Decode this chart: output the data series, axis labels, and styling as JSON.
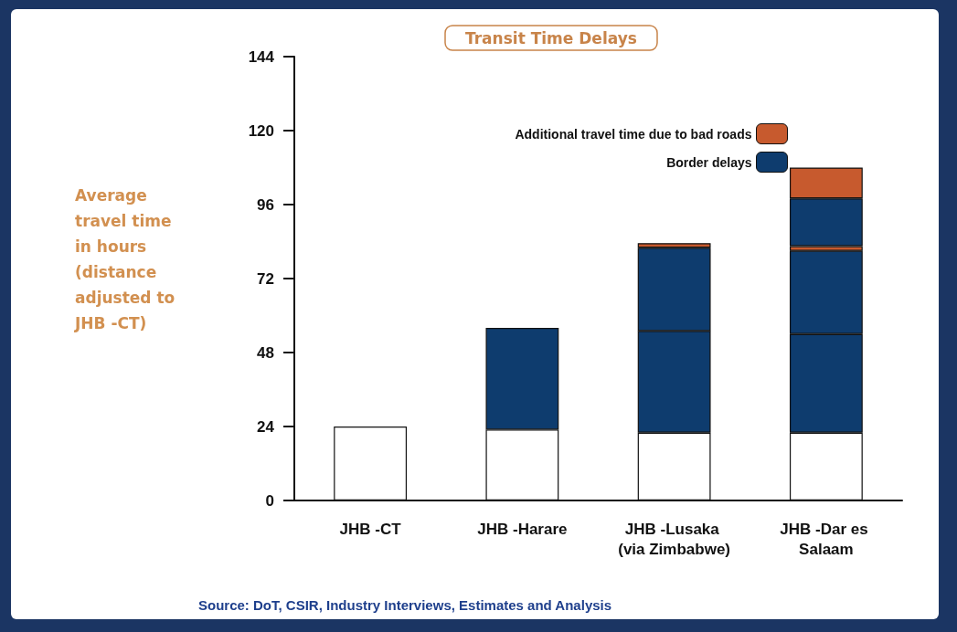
{
  "chart_data": {
    "type": "bar",
    "title": "Transit Time Delays",
    "ylabel": "Average travel time in hours (distance adjusted to JHB -CT)",
    "categories": [
      "JHB -CT",
      "JHB -Harare",
      "JHB -Lusaka (via Zimbabwe)",
      "JHB -Dar es Salaam"
    ],
    "stacked": true,
    "series": [
      {
        "color": "#ffffff",
        "values": [
          24,
          23,
          22,
          22
        ]
      },
      {
        "name": "Border delays",
        "color": "#0e3c6e",
        "values": [
          null,
          33,
          33,
          32
        ]
      },
      {
        "color": "#0e3c6e",
        "values": [
          null,
          null,
          27,
          27
        ]
      },
      {
        "name": "Additional travel time due to bad roads",
        "color": "#c75a2e",
        "values": [
          null,
          null,
          1.5,
          1.5
        ]
      },
      {
        "color": "#0e3c6e",
        "values": [
          null,
          null,
          null,
          15.5
        ]
      },
      {
        "color": "#c75a2e",
        "values": [
          null,
          null,
          null,
          10
        ]
      }
    ],
    "ylim": [
      0,
      144
    ],
    "yticks": [
      0,
      24,
      48,
      72,
      96,
      120,
      144
    ],
    "legend": "top right",
    "grid": false,
    "annotations": [
      "Source: DoT, CSIR, Industry Interviews, Estimates and Analysis"
    ]
  }
}
